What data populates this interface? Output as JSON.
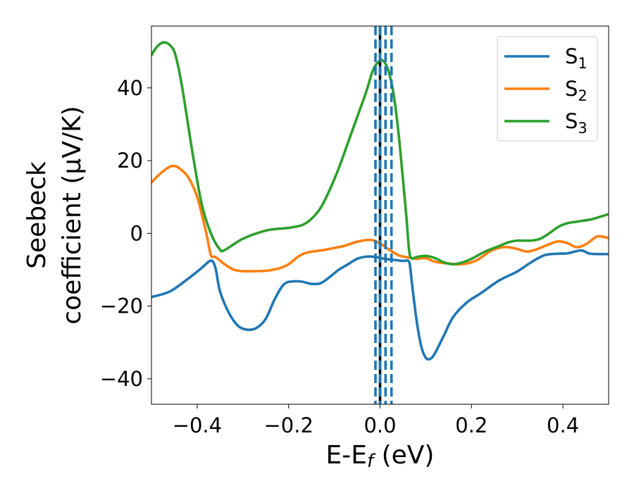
{
  "chart_data": {
    "type": "line",
    "xlabel": "E-E",
    "xlabel_sub": "f",
    "xlabel_unit": " (eV)",
    "ylabel_line1": "Seebeck",
    "ylabel_line2": "coefficient  (μV/K)",
    "xlim": [
      -0.5,
      0.5
    ],
    "ylim": [
      -47,
      57
    ],
    "x_ticks": [
      -0.4,
      -0.2,
      0.0,
      0.2,
      0.4
    ],
    "x_tick_labels": [
      "−0.4",
      "−0.2",
      "0.0",
      "0.2",
      "0.4"
    ],
    "y_ticks": [
      -40,
      -20,
      0,
      20,
      40
    ],
    "y_tick_labels": [
      "−40",
      "−20",
      "0",
      "20",
      "40"
    ],
    "grid": false,
    "legend_position": "top-right",
    "vlines": [
      {
        "x": 0.0,
        "style": "solid",
        "color": "#000000"
      },
      {
        "x": -0.01,
        "style": "dashed",
        "color": "#1f77b4"
      },
      {
        "x": 0.0,
        "style": "dashed",
        "color": "#1f77b4"
      },
      {
        "x": 0.012,
        "style": "dashed",
        "color": "#1f77b4"
      },
      {
        "x": 0.025,
        "style": "dashed",
        "color": "#1f77b4"
      }
    ],
    "series": [
      {
        "name": "S",
        "sub": "1",
        "color": "#1f77b4",
        "points": [
          [
            -0.5,
            -17.5
          ],
          [
            -0.46,
            -16
          ],
          [
            -0.42,
            -12.5
          ],
          [
            -0.39,
            -9.5
          ],
          [
            -0.37,
            -7.5
          ],
          [
            -0.36,
            -9.5
          ],
          [
            -0.35,
            -16
          ],
          [
            -0.33,
            -22
          ],
          [
            -0.31,
            -25.5
          ],
          [
            -0.29,
            -26.5
          ],
          [
            -0.27,
            -26
          ],
          [
            -0.25,
            -23.5
          ],
          [
            -0.23,
            -18
          ],
          [
            -0.21,
            -14
          ],
          [
            -0.19,
            -13.2
          ],
          [
            -0.17,
            -13.3
          ],
          [
            -0.15,
            -13.9
          ],
          [
            -0.13,
            -13.7
          ],
          [
            -0.11,
            -12
          ],
          [
            -0.09,
            -10
          ],
          [
            -0.07,
            -8.5
          ],
          [
            -0.05,
            -7
          ],
          [
            -0.03,
            -6.4
          ],
          [
            -0.01,
            -6.5
          ],
          [
            0.01,
            -7
          ],
          [
            0.03,
            -7.3
          ],
          [
            0.05,
            -7.6
          ],
          [
            0.06,
            -7.5
          ],
          [
            0.065,
            -8.5
          ],
          [
            0.07,
            -14
          ],
          [
            0.08,
            -24
          ],
          [
            0.09,
            -31
          ],
          [
            0.1,
            -34.2
          ],
          [
            0.11,
            -34.5
          ],
          [
            0.12,
            -33
          ],
          [
            0.14,
            -28
          ],
          [
            0.16,
            -23
          ],
          [
            0.19,
            -19
          ],
          [
            0.22,
            -16.5
          ],
          [
            0.26,
            -13
          ],
          [
            0.3,
            -10.5
          ],
          [
            0.33,
            -8
          ],
          [
            0.36,
            -6
          ],
          [
            0.39,
            -5.6
          ],
          [
            0.41,
            -5.5
          ],
          [
            0.44,
            -4.7
          ],
          [
            0.46,
            -5.6
          ],
          [
            0.5,
            -5.7
          ]
        ]
      },
      {
        "name": "S",
        "sub": "2",
        "color": "#ff7f0e",
        "points": [
          [
            -0.5,
            14
          ],
          [
            -0.48,
            16.5
          ],
          [
            -0.46,
            18.3
          ],
          [
            -0.45,
            18.5
          ],
          [
            -0.44,
            18
          ],
          [
            -0.42,
            15.5
          ],
          [
            -0.4,
            10
          ],
          [
            -0.38,
            0
          ],
          [
            -0.37,
            -6
          ],
          [
            -0.36,
            -6.5
          ],
          [
            -0.34,
            -8.5
          ],
          [
            -0.32,
            -10
          ],
          [
            -0.3,
            -10.4
          ],
          [
            -0.28,
            -10.4
          ],
          [
            -0.25,
            -10.3
          ],
          [
            -0.22,
            -9.6
          ],
          [
            -0.2,
            -8.5
          ],
          [
            -0.18,
            -6.5
          ],
          [
            -0.16,
            -5.3
          ],
          [
            -0.12,
            -4.5
          ],
          [
            -0.08,
            -3.5
          ],
          [
            -0.05,
            -2.3
          ],
          [
            -0.02,
            -1.8
          ],
          [
            0.0,
            -2.8
          ],
          [
            0.02,
            -4.5
          ],
          [
            0.04,
            -6
          ],
          [
            0.06,
            -6.6
          ],
          [
            0.08,
            -7
          ],
          [
            0.1,
            -6.8
          ],
          [
            0.12,
            -7.8
          ],
          [
            0.15,
            -8.3
          ],
          [
            0.18,
            -8.5
          ],
          [
            0.21,
            -7.5
          ],
          [
            0.24,
            -5
          ],
          [
            0.26,
            -4
          ],
          [
            0.28,
            -3.8
          ],
          [
            0.3,
            -4.3
          ],
          [
            0.32,
            -5
          ],
          [
            0.34,
            -4.5
          ],
          [
            0.37,
            -3
          ],
          [
            0.39,
            -2.2
          ],
          [
            0.41,
            -2.7
          ],
          [
            0.43,
            -3.8
          ],
          [
            0.45,
            -3
          ],
          [
            0.47,
            -1.2
          ],
          [
            0.48,
            -0.8
          ],
          [
            0.5,
            -1.3
          ]
        ]
      },
      {
        "name": "S",
        "sub": "3",
        "color": "#2ca02c",
        "points": [
          [
            -0.5,
            49
          ],
          [
            -0.49,
            51
          ],
          [
            -0.48,
            52.2
          ],
          [
            -0.47,
            52.5
          ],
          [
            -0.46,
            51.8
          ],
          [
            -0.45,
            50
          ],
          [
            -0.44,
            45
          ],
          [
            -0.43,
            38
          ],
          [
            -0.41,
            22
          ],
          [
            -0.39,
            8
          ],
          [
            -0.37,
            0
          ],
          [
            -0.35,
            -4.5
          ],
          [
            -0.34,
            -4.6
          ],
          [
            -0.32,
            -3
          ],
          [
            -0.3,
            -1.5
          ],
          [
            -0.27,
            0
          ],
          [
            -0.24,
            1
          ],
          [
            -0.2,
            1.5
          ],
          [
            -0.17,
            2.3
          ],
          [
            -0.15,
            4
          ],
          [
            -0.13,
            7
          ],
          [
            -0.11,
            12
          ],
          [
            -0.09,
            18
          ],
          [
            -0.07,
            25
          ],
          [
            -0.05,
            32
          ],
          [
            -0.03,
            39
          ],
          [
            -0.015,
            45
          ],
          [
            0.0,
            47.5
          ],
          [
            0.01,
            47
          ],
          [
            0.02,
            44
          ],
          [
            0.03,
            38
          ],
          [
            0.04,
            28
          ],
          [
            0.05,
            15
          ],
          [
            0.058,
            4
          ],
          [
            0.063,
            -4
          ],
          [
            0.068,
            -6.8
          ],
          [
            0.08,
            -6.5
          ],
          [
            0.1,
            -6.2
          ],
          [
            0.12,
            -6.8
          ],
          [
            0.14,
            -8
          ],
          [
            0.16,
            -8.5
          ],
          [
            0.18,
            -8
          ],
          [
            0.2,
            -7
          ],
          [
            0.23,
            -5
          ],
          [
            0.26,
            -3.5
          ],
          [
            0.28,
            -2.5
          ],
          [
            0.3,
            -2
          ],
          [
            0.33,
            -2
          ],
          [
            0.35,
            -1.5
          ],
          [
            0.37,
            0
          ],
          [
            0.39,
            1.8
          ],
          [
            0.41,
            2.8
          ],
          [
            0.43,
            3.2
          ],
          [
            0.46,
            3.8
          ],
          [
            0.48,
            4.5
          ],
          [
            0.5,
            5.3
          ]
        ]
      }
    ]
  }
}
